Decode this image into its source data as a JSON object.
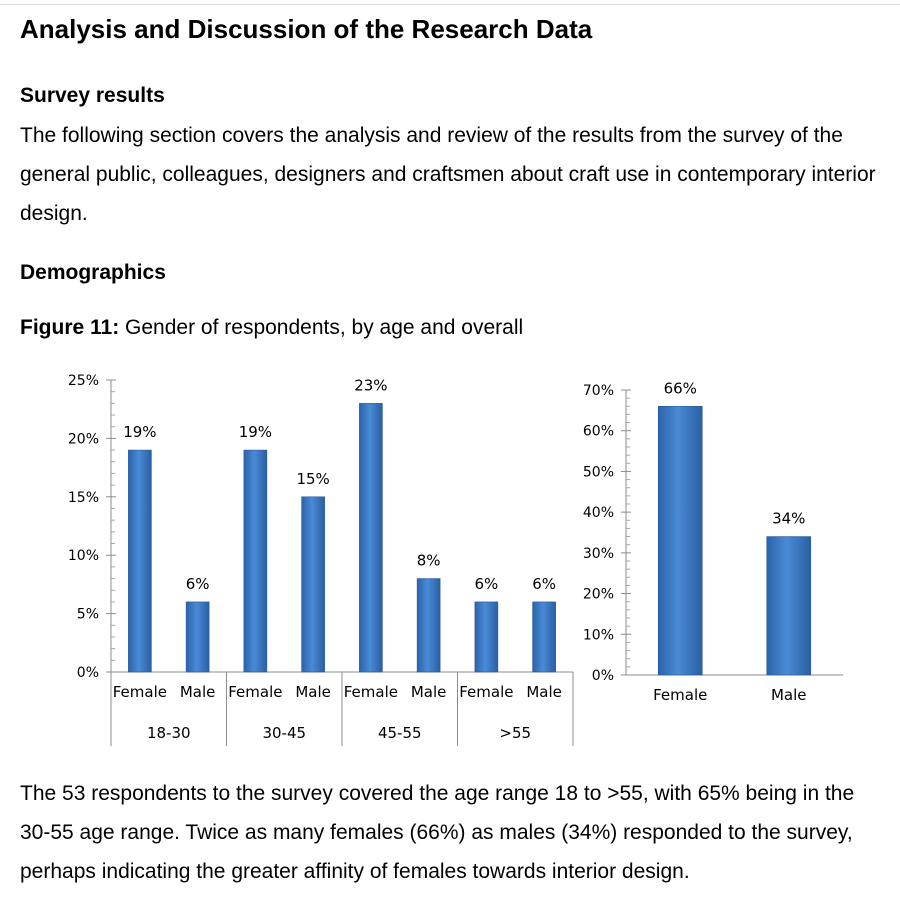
{
  "heading": "Analysis and Discussion of the Research Data",
  "survey": {
    "title": "Survey results",
    "text": "The following section covers the analysis and review of the results from the survey of the general public, colleagues, designers and craftsmen about craft use in contemporary interior design."
  },
  "demographics": {
    "title": "Demographics"
  },
  "figure": {
    "label": "Figure 11:",
    "caption": "Gender of respondents, by age and overall"
  },
  "chart_data": [
    {
      "type": "bar",
      "categories": [
        "Female",
        "Male",
        "Female",
        "Male",
        "Female",
        "Male",
        "Female",
        "Male"
      ],
      "groups": [
        {
          "label": "18-30",
          "span": 2
        },
        {
          "label": "30-45",
          "span": 2
        },
        {
          "label": "45-55",
          "span": 2
        },
        {
          "label": ">55",
          "span": 2
        }
      ],
      "values": [
        19,
        6,
        19,
        15,
        23,
        8,
        6,
        6
      ],
      "data_labels": [
        "19%",
        "6%",
        "19%",
        "15%",
        "23%",
        "8%",
        "6%",
        "6%"
      ],
      "ylim": [
        0,
        25
      ],
      "yticks": [
        "0%",
        "5%",
        "10%",
        "15%",
        "20%",
        "25%"
      ],
      "bar_color": "#3d7cc9",
      "grid": false
    },
    {
      "type": "bar",
      "categories": [
        "Female",
        "Male"
      ],
      "values": [
        66,
        34
      ],
      "data_labels": [
        "66%",
        "34%"
      ],
      "ylim": [
        0,
        70
      ],
      "yticks": [
        "0%",
        "10%",
        "20%",
        "30%",
        "40%",
        "50%",
        "60%",
        "70%"
      ],
      "bar_color": "#3d7cc9",
      "grid": false
    }
  ],
  "conclusion": {
    "text": "The 53 respondents to the survey covered the age range 18 to >55, with 65% being in the 30-55 age range. Twice as many females (66%) as males (34%) responded to the survey, perhaps indicating the greater affinity of females towards interior design."
  }
}
